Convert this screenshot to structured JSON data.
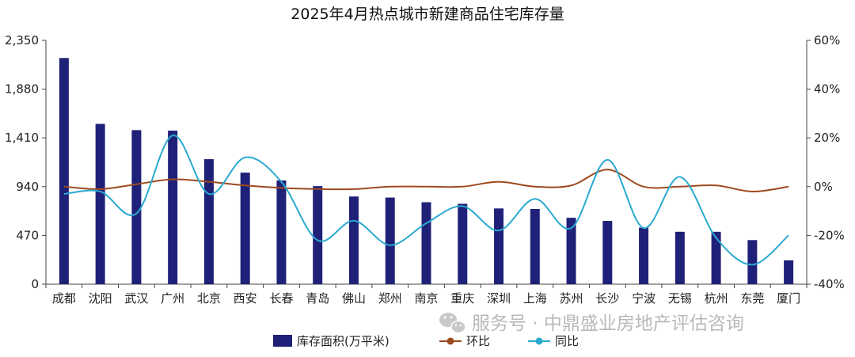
{
  "chart_data": {
    "type": "bar",
    "title": "2025年4月热点城市新建商品住宅库存量",
    "categories": [
      "成都",
      "沈阳",
      "武汉",
      "广州",
      "北京",
      "西安",
      "长春",
      "青岛",
      "佛山",
      "郑州",
      "南京",
      "重庆",
      "深圳",
      "上海",
      "苏州",
      "长沙",
      "宁波",
      "无锡",
      "杭州",
      "东莞",
      "厦门"
    ],
    "left_axis": {
      "min": 0,
      "max": 2350,
      "ticks": [
        "0",
        "470",
        "940",
        "1,410",
        "1,880",
        "2,350"
      ]
    },
    "right_axis": {
      "min": -40,
      "max": 60,
      "ticks": [
        "-40%",
        "-20%",
        "0%",
        "20%",
        "40%",
        "60%"
      ]
    },
    "grid": false,
    "legend_position": "bottom",
    "series": [
      {
        "name": "库存面积(万平米)",
        "type": "bar",
        "axis": "left",
        "color": "#1f2178",
        "values": [
          2180,
          1545,
          1485,
          1480,
          1205,
          1075,
          1000,
          945,
          845,
          835,
          790,
          775,
          730,
          725,
          640,
          610,
          545,
          505,
          505,
          425,
          230
        ]
      },
      {
        "name": "环比",
        "type": "line",
        "axis": "right",
        "color": "#9e4a1f",
        "values": [
          0,
          -1,
          1,
          3,
          2,
          0.5,
          -0.5,
          -1,
          -1,
          0,
          0,
          0,
          2,
          0,
          0.5,
          7,
          0,
          0,
          0.5,
          -2,
          0
        ]
      },
      {
        "name": "同比",
        "type": "line",
        "axis": "right",
        "color": "#2aa9cf",
        "values": [
          -3,
          -2,
          -11,
          21,
          -3,
          12,
          2,
          -22,
          -14,
          -24,
          -15,
          -8,
          -18,
          -5,
          -17,
          11,
          -17,
          4,
          -21,
          -32,
          -20
        ]
      }
    ]
  },
  "watermark": {
    "icon": "wechat-icon",
    "text": "服务号 · 中鼎盛业房地产评估咨询"
  }
}
